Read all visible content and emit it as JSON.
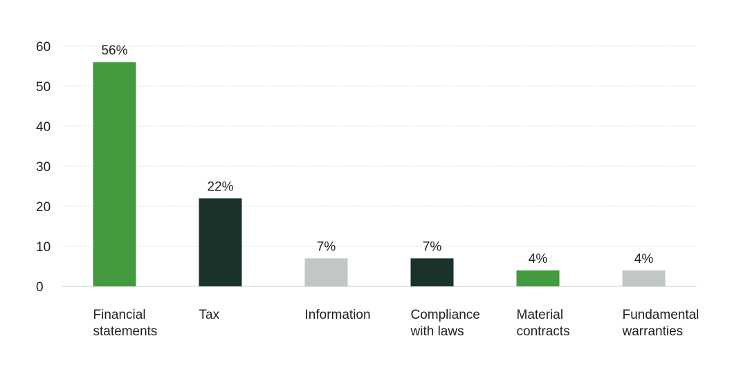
{
  "chart_data": {
    "type": "bar",
    "title": "",
    "xlabel": "",
    "ylabel": "",
    "ylim": [
      0,
      60
    ],
    "yticks": [
      0,
      10,
      20,
      30,
      40,
      50,
      60
    ],
    "grid": true,
    "categories": [
      [
        "Financial",
        "statements"
      ],
      [
        "Tax"
      ],
      [
        "Information"
      ],
      [
        "Compliance",
        "with laws"
      ],
      [
        "Material",
        "contracts"
      ],
      [
        "Fundamental",
        "warranties"
      ]
    ],
    "values": [
      56,
      22,
      7,
      7,
      4,
      4
    ],
    "data_labels": [
      "56%",
      "22%",
      "7%",
      "7%",
      "4%",
      "4%"
    ],
    "colors": [
      "#439a3f",
      "#1b322a",
      "#c1c8c4",
      "#1b322a",
      "#439a3f",
      "#c1c8c4"
    ]
  }
}
